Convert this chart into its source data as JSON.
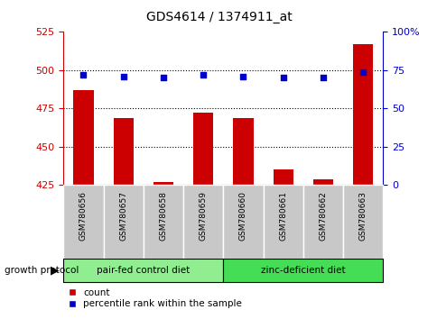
{
  "title": "GDS4614 / 1374911_at",
  "samples": [
    "GSM780656",
    "GSM780657",
    "GSM780658",
    "GSM780659",
    "GSM780660",
    "GSM780661",
    "GSM780662",
    "GSM780663"
  ],
  "counts": [
    487,
    469,
    427,
    472,
    469,
    435,
    429,
    517
  ],
  "percentiles": [
    72,
    71,
    70,
    72,
    71,
    70,
    70,
    74
  ],
  "ylim_left": [
    425,
    525
  ],
  "ylim_right": [
    0,
    100
  ],
  "yticks_left": [
    425,
    450,
    475,
    500,
    525
  ],
  "yticks_right": [
    0,
    25,
    50,
    75,
    100
  ],
  "groups": [
    {
      "label": "pair-fed control diet",
      "indices": [
        0,
        1,
        2,
        3
      ],
      "color": "#90EE90"
    },
    {
      "label": "zinc-deficient diet",
      "indices": [
        4,
        5,
        6,
        7
      ],
      "color": "#44DD55"
    }
  ],
  "bar_color": "#CC0000",
  "dot_color": "#0000CC",
  "bar_width": 0.5,
  "group_label": "growth protocol",
  "legend_bar": "count",
  "legend_dot": "percentile rank within the sample",
  "bg_color": "#FFFFFF",
  "left_axis_color": "#CC0000",
  "right_axis_color": "#0000CC",
  "title_color": "#000000",
  "sample_bg": "#C8C8C8",
  "grid_color": "#000000"
}
